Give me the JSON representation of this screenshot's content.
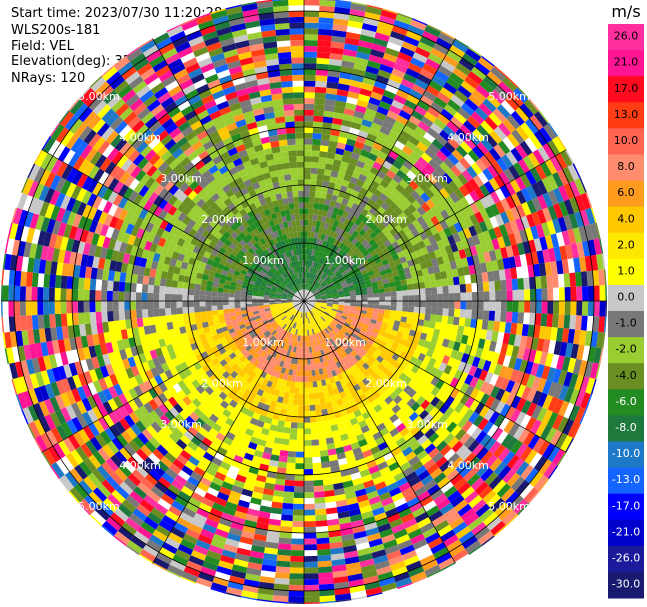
{
  "header": {
    "start_time": "Start time: 2023/07/30 11:20:28",
    "instrument": "WLS200s-181",
    "field": "Field: VEL",
    "elevation": "Elevation(deg): 35.30",
    "nrays": "NRays: 120"
  },
  "colorbar": {
    "unit": "m/s",
    "ticks": [
      "26.0",
      "21.0",
      "17.0",
      "13.0",
      "10.0",
      "8.0",
      "6.0",
      "4.0",
      "2.0",
      "1.0",
      "0.0",
      "-1.0",
      "-2.0",
      "-4.0",
      "-6.0",
      "-8.0",
      "-10.0",
      "-13.0",
      "-17.0",
      "-21.0",
      "-26.0",
      "-30.0"
    ],
    "colors": [
      "#ff2fa0",
      "#ff1493",
      "#ff0a1e",
      "#ff3c14",
      "#ff6450",
      "#ff8c6e",
      "#ff9c1e",
      "#ffc800",
      "#ffe800",
      "#ffff00",
      "#c8c8c8",
      "#787878",
      "#9acd32",
      "#6b8e23",
      "#228b22",
      "#1e7a3c",
      "#1e78c8",
      "#1464ff",
      "#0000ff",
      "#0000cd",
      "#1a1a9a",
      "#191970"
    ]
  },
  "chart_data": {
    "type": "polar_ppi",
    "field": "VEL",
    "units": "m/s",
    "nrays": 120,
    "range_ring_labels": [
      "1.00km",
      "2.00km",
      "3.00km",
      "4.00km",
      "5.00km"
    ],
    "range_rings_km": [
      1,
      2,
      3,
      4,
      5
    ],
    "vmin": -30,
    "vmax": 30,
    "pattern": {
      "north_inner_m_s": -6.0,
      "south_inner_m_s": 4.0,
      "clear_air_noise_beyond_km": 3.5
    }
  }
}
